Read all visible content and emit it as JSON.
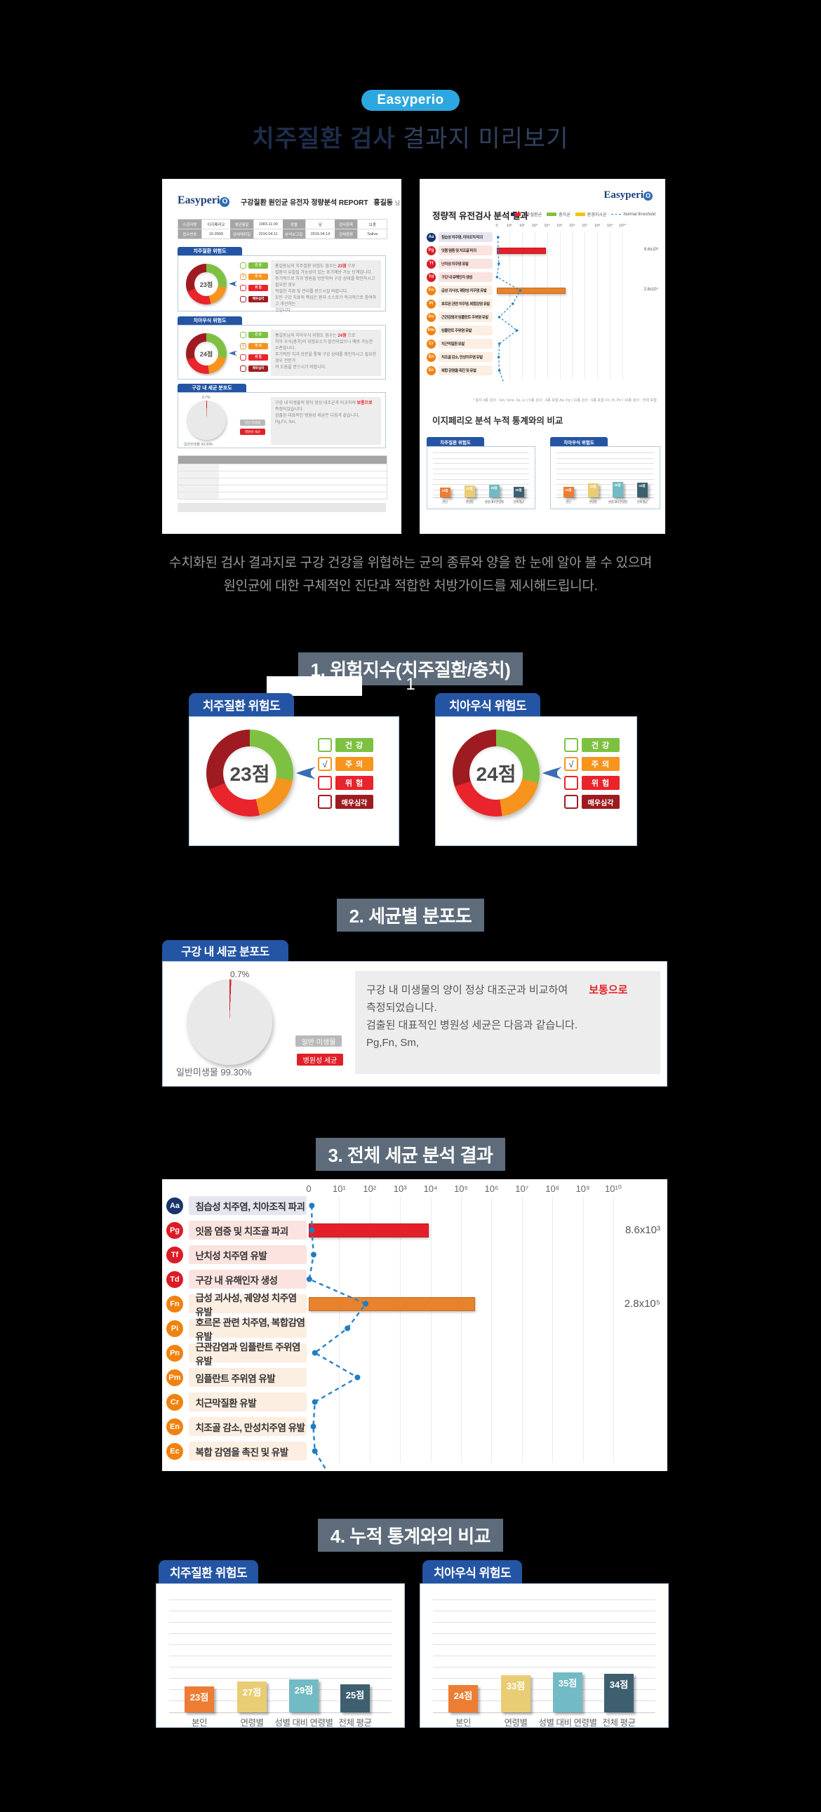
{
  "header": {
    "brand_badge": "Easyperio",
    "title_strong": "치주질환 검사",
    "title_light": " 결과지 미리보기"
  },
  "intro": {
    "line1": "수치화된 검사 결과지로 구강 건강을 위협하는 균의 종류와 양을 한 눈에 알아 볼 수 있으며",
    "line2": "원인균에 대한 구체적인 진단과 적합한 처방가이드를 제시해드립니다."
  },
  "section_badges": {
    "s1": "1. 위험지수(치주질환/충치)",
    "s2": "2. 세균별 분포도",
    "s3": "3. 전체 세균 분석 결과",
    "s4": "4. 누적 통계와의 비교"
  },
  "page_indicator": "1",
  "check_glyph": "√",
  "colors": {
    "accent_blue": "#2455a4",
    "brand_blue": "#2da7e0",
    "slate_badge": "#5d6b7a",
    "green": "#7ec142",
    "orange": "#f7941e",
    "red": "#e9242c",
    "dark_red": "#9e1c21",
    "threshold_blue": "#2e86c8"
  },
  "risk_cards": [
    {
      "title": "치주질환 위험도",
      "score": "23점",
      "segments": [
        [
          "#7ec142",
          0,
          100
        ],
        [
          "#f7941e",
          100,
          167
        ],
        [
          "#e9242c",
          167,
          248
        ],
        [
          "#9e1c21",
          248,
          360
        ]
      ],
      "legend": [
        {
          "label": "건 강",
          "color": "#7ec142",
          "checked": false
        },
        {
          "label": "주 의",
          "color": "#f7941e",
          "checked": true
        },
        {
          "label": "위 험",
          "color": "#e9242c",
          "checked": false
        },
        {
          "label": "매우심각",
          "color": "#9e1c21",
          "checked": false
        }
      ]
    },
    {
      "title": "치아우식 위험도",
      "score": "24점",
      "segments": [
        [
          "#7ec142",
          0,
          103
        ],
        [
          "#f7941e",
          103,
          172
        ],
        [
          "#e9242c",
          172,
          252
        ],
        [
          "#9e1c21",
          252,
          360
        ]
      ],
      "legend": [
        {
          "label": "건 강",
          "color": "#7ec142",
          "checked": false
        },
        {
          "label": "주 의",
          "color": "#f7941e",
          "checked": true
        },
        {
          "label": "위 험",
          "color": "#e9242c",
          "checked": false
        },
        {
          "label": "매우심각",
          "color": "#9e1c21",
          "checked": false
        }
      ]
    }
  ],
  "distribution": {
    "tab": "구강 내 세균 분포도",
    "pie_segments": [
      [
        "#d8232a",
        0,
        2.5
      ],
      [
        "#e9e9e9",
        2.5,
        360
      ]
    ],
    "pie_label": "0.7%",
    "pie_caption": "일반미생물 99.30%",
    "btn_normal": "일반 미생물",
    "btn_pathogen": "병원성 세균",
    "text_line1": "구강 내 미생물의 양이 정상 대조군과 비교하여",
    "text_highlight": "보통으로",
    "text_line2": "측정되었습니다.",
    "text_line3": "검출된 대표적인 병원성 세균은 다음과 같습니다.",
    "text_line4": "Pg,Fn, Sm,"
  },
  "chart_data": [
    {
      "id": "bacteria_analysis",
      "type": "bar",
      "title": "3. 전체 세균 분석 결과",
      "x_scale": "log10",
      "ticks": [
        "0",
        "10¹",
        "10²",
        "10³",
        "10⁴",
        "10⁵",
        "10⁶",
        "10⁷",
        "10⁸",
        "10⁹",
        "10¹⁰"
      ],
      "legend_note": "Normal threshold",
      "rows": [
        {
          "code": "Aa",
          "group": "navy",
          "label": "침습성 치주염, 치아조직 파괴",
          "threshold_log": 0.1
        },
        {
          "code": "Pg",
          "group": "red",
          "label": "잇몸 염증 및 치조골 파괴",
          "threshold_log": 0.1,
          "bar_log": 3.93,
          "value_label": "8.6x10³"
        },
        {
          "code": "Tf",
          "group": "red",
          "label": "난치성 치주염 유발",
          "threshold_log": 0.16
        },
        {
          "code": "Td",
          "group": "red",
          "label": "구강 내 유해인자 생성",
          "threshold_log": 0.02
        },
        {
          "code": "Fn",
          "group": "orange",
          "label": "급성 괴사성, 궤양성 치주염 유발",
          "threshold_log": 1.87,
          "bar_log": 5.45,
          "value_label": "2.8x10⁵"
        },
        {
          "code": "Pi",
          "group": "orange",
          "label": "호르몬 관련 치주염, 복합감염 유발",
          "threshold_log": 1.27
        },
        {
          "code": "Pn",
          "group": "orange",
          "label": "근관감염과 임플란트 주위염 유발",
          "threshold_log": 0.2
        },
        {
          "code": "Pm",
          "group": "orange",
          "label": "임플란트 주위염 유발",
          "threshold_log": 1.6
        },
        {
          "code": "Cr",
          "group": "orange",
          "label": "치근막질환 유발",
          "threshold_log": 0.2
        },
        {
          "code": "En",
          "group": "orange",
          "label": "치조골 감소, 만성치주염 유발",
          "threshold_log": 0.15
        },
        {
          "code": "Ec",
          "group": "orange",
          "label": "복합 감염을 촉진 및 유발",
          "threshold_log": 0.2
        }
      ]
    },
    {
      "id": "perio_comparison",
      "type": "bar",
      "title": "치주질환 위험도",
      "categories": [
        "본인",
        "연령별",
        "성별 대비 연령별",
        "전체 평균"
      ],
      "values": [
        23,
        27,
        29,
        25
      ],
      "value_labels": [
        "23점",
        "27점",
        "29점",
        "25점"
      ],
      "colors": [
        "#ec7d33",
        "#e9cd74",
        "#72bac4",
        "#3d5f70"
      ]
    },
    {
      "id": "caries_comparison",
      "type": "bar",
      "title": "치아우식 위험도",
      "categories": [
        "본인",
        "연령별",
        "성별 대비 연령별",
        "전체 평균"
      ],
      "values": [
        24,
        33,
        35,
        34
      ],
      "value_labels": [
        "24점",
        "33점",
        "35점",
        "34점"
      ],
      "colors": [
        "#ec7d33",
        "#e9cd74",
        "#72bac4",
        "#3d5f70"
      ]
    }
  ],
  "report_left": {
    "logo_text": "Easyperi",
    "logo_o": "O",
    "title": "구강질환 원인균 유전자 정량분석 REPORT",
    "patient_name": "홍길동",
    "name_suffix": "님",
    "info": [
      {
        "label": "수검자명",
        "value": "이지페리오"
      },
      {
        "label": "생년월일",
        "value": "1983.11.09"
      },
      {
        "label": "성별",
        "value": "남"
      },
      {
        "label": "검사항목",
        "value": "11종"
      },
      {
        "label": "접수번호",
        "value": "16-9999"
      },
      {
        "label": "검체채취일",
        "value": "2016.04.11"
      },
      {
        "label": "분석보고일",
        "value": "2016.04.14"
      },
      {
        "label": "검체종류",
        "value": "Saliva"
      }
    ],
    "sec1": {
      "tab": "치주질환 위험도",
      "text_pre": "홍길동님의 치주질환 위험도 점수는 ",
      "text_hl": "23점",
      "text_post": " 으로",
      "lines": [
        "질환이 유발될 가능성이 있는 초기예방 가능 단계입니다.",
        "주기적으로 치과 병원을 방문하여 구강 상태를 확인하시고 필요한 경우",
        "적절한 치료 및 관리를 받으시길 바랍니다.",
        "모든 구강 치료의 핵심은 환자 스스로가 적극적으로 참여하고 개선하는",
        "것입니다."
      ]
    },
    "sec2": {
      "tab": "치아우식 위험도",
      "text_pre": "홍길동님의 치아우식 위험도 점수는 ",
      "text_hl": "24점",
      "text_post": " 으로",
      "lines": [
        "치아 우식(충치)의 위험요소가 발견되었으나 예방 가능한 수준입니다.",
        "주기적인 치과 방문을 통해 구강 상태를 확인하시고 필요한 경우 전문가",
        "의 도움을 받으시기 바랍니다."
      ]
    },
    "sec3": {
      "tab": "구강 내 세균 분포도",
      "text_pre": "구강 내 미생물의 양이 정상 대조군과 비교하여 ",
      "text_hl": "보통으로",
      "text_post": "",
      "lines": [
        "측정되었습니다.",
        "검출된 대표적인 병원성 세균은 다음과 같습니다.",
        "Pg,Fn, Sm,"
      ]
    }
  },
  "report_right": {
    "logo_text": "Easyperi",
    "logo_o": "O",
    "title": "정량적 유전검사 분석 결과",
    "legend": [
      {
        "label": "치주질환균",
        "swatch": "two-tone"
      },
      {
        "label": "충치균",
        "swatch": "#7ec142"
      },
      {
        "label": "환경지시균",
        "swatch": "#f1c40f"
      },
      {
        "label": "Normal threshold",
        "swatch": "dashed"
      }
    ],
    "footnote": "* 충치 4종 검사 : Sm, Sms, Ss, Lc / 6종 검사 : 4종 포함 Aa, Pg / 11종 검사 : 6종 포함 Fn, Pi, Pn / 16종 검사 : 전체 포함",
    "compare_heading": "이지페리오 분석 누적 통계와의 비교"
  }
}
